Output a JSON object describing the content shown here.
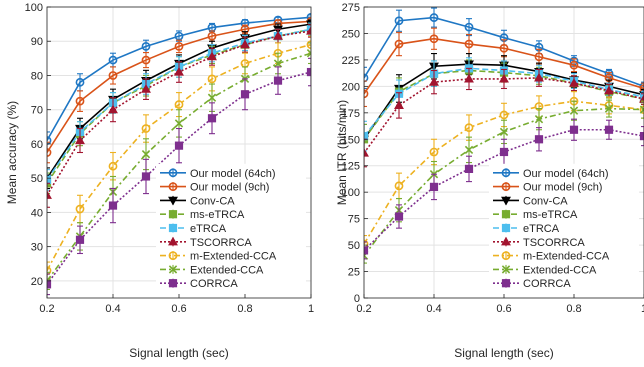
{
  "chart_data": [
    {
      "type": "line",
      "xlabel": "Signal length (sec)",
      "ylabel": "Mean accuracy (%)",
      "xlim": [
        0.2,
        1.0
      ],
      "ylim": [
        15,
        100
      ],
      "xticks": [
        0.2,
        0.4,
        0.6,
        0.8,
        1
      ],
      "xtick_labels": [
        "0.2",
        "0.4",
        "0.6",
        "0.8",
        "1"
      ],
      "yticks": [
        20,
        30,
        40,
        50,
        60,
        70,
        80,
        90,
        100
      ],
      "ytick_labels": [
        "20",
        "30",
        "40",
        "50",
        "60",
        "70",
        "80",
        "90",
        "100"
      ],
      "grid": true,
      "legend_position": "bottom-right",
      "x": [
        0.2,
        0.3,
        0.4,
        0.5,
        0.6,
        0.7,
        0.8,
        0.9,
        1.0
      ],
      "series": [
        {
          "name": "Our model (64ch)",
          "values": [
            61,
            78,
            84.5,
            88.5,
            91.5,
            94,
            95.3,
            96.2,
            97
          ],
          "err": [
            2.5,
            2.5,
            2,
            1.8,
            1.5,
            1.2,
            1,
            0.8,
            0.7
          ]
        },
        {
          "name": "Our model (9ch)",
          "values": [
            57.5,
            72.5,
            80,
            84.5,
            88.5,
            91.5,
            93.5,
            95.2,
            95.8
          ],
          "err": [
            3,
            3,
            2.5,
            2.2,
            1.8,
            1.5,
            1.2,
            1,
            0.9
          ]
        },
        {
          "name": "Conv-CA",
          "values": [
            50,
            64.5,
            73,
            78.5,
            83.5,
            88,
            91,
            93.5,
            95
          ],
          "err": [
            3,
            3,
            3,
            3,
            2.5,
            2,
            1.8,
            1.5,
            1.2
          ]
        },
        {
          "name": "ms-eTRCA",
          "values": [
            48.5,
            63,
            72,
            77,
            82.5,
            86,
            89,
            91.5,
            93.5
          ],
          "err": [
            3,
            3.5,
            3,
            3,
            3,
            2.5,
            2.2,
            2,
            1.8
          ]
        },
        {
          "name": "eTRCA",
          "values": [
            49.5,
            63.5,
            72,
            77.5,
            82.5,
            86.5,
            89.5,
            91.5,
            93.5
          ],
          "err": [
            3,
            3,
            3,
            3,
            3,
            2.5,
            2.2,
            2,
            1.8
          ]
        },
        {
          "name": "TSCORRCA",
          "values": [
            45,
            61,
            70,
            76,
            81,
            85.5,
            89,
            91.5,
            93
          ],
          "err": [
            3.5,
            3.5,
            3.5,
            3,
            3,
            2.5,
            2.2,
            2,
            1.8
          ]
        },
        {
          "name": "m-Extended-CCA",
          "values": [
            23,
            41,
            53.5,
            64.5,
            71.5,
            79,
            83.5,
            86.5,
            89
          ],
          "err": [
            2.5,
            4,
            4,
            4,
            3.5,
            3.5,
            3,
            3,
            2.5
          ]
        },
        {
          "name": "Extended-CCA",
          "values": [
            20,
            33,
            46,
            57,
            66,
            73.5,
            79,
            83.5,
            86.5
          ],
          "err": [
            2.5,
            4,
            4.5,
            4.5,
            4,
            4,
            3.5,
            3,
            3
          ]
        },
        {
          "name": "CORRCA",
          "values": [
            19,
            32,
            42,
            50.5,
            59.5,
            67.5,
            74.5,
            78.5,
            81
          ],
          "err": [
            3,
            4,
            5,
            5,
            5,
            4.5,
            4.5,
            4,
            4
          ]
        }
      ]
    },
    {
      "type": "line",
      "xlabel": "Signal length (sec)",
      "ylabel": "Mean ITR (bits/min)",
      "xlim": [
        0.2,
        1.0
      ],
      "ylim": [
        0,
        275
      ],
      "xticks": [
        0.2,
        0.4,
        0.6,
        0.8,
        1
      ],
      "xtick_labels": [
        "0.2",
        "0.4",
        "0.6",
        "0.8",
        "1"
      ],
      "yticks": [
        0,
        25,
        50,
        75,
        100,
        125,
        150,
        175,
        200,
        225,
        250,
        275
      ],
      "ytick_labels": [
        "0",
        "25",
        "50",
        "75",
        "100",
        "125",
        "150",
        "175",
        "200",
        "225",
        "250",
        "275"
      ],
      "grid": true,
      "legend_position": "bottom-right",
      "x": [
        0.2,
        0.3,
        0.4,
        0.5,
        0.6,
        0.7,
        0.8,
        0.9,
        1.0
      ],
      "series": [
        {
          "name": "Our model (64ch)",
          "values": [
            208,
            262,
            265,
            256,
            246,
            237,
            224,
            212,
            200
          ],
          "err": [
            10,
            10,
            9,
            8,
            7,
            6,
            5,
            4,
            4
          ]
        },
        {
          "name": "Our model (9ch)",
          "values": [
            193,
            240,
            245,
            240,
            236,
            228,
            220,
            208,
            198
          ],
          "err": [
            12,
            11,
            10,
            9,
            8,
            7,
            6,
            5,
            5
          ]
        },
        {
          "name": "Conv-CA",
          "values": [
            150,
            198,
            219,
            221,
            220,
            214,
            206,
            200,
            192
          ],
          "err": [
            14,
            13,
            12,
            10,
            9,
            8,
            7,
            6,
            5
          ]
        },
        {
          "name": "ms-eTRCA",
          "values": [
            150,
            195,
            212,
            215,
            213,
            210,
            203,
            195,
            188
          ],
          "err": [
            14,
            13,
            12,
            10,
            9,
            8,
            7,
            6,
            5
          ]
        },
        {
          "name": "eTRCA",
          "values": [
            153,
            193,
            212,
            217,
            215,
            212,
            205,
            197,
            190
          ],
          "err": [
            14,
            13,
            12,
            10,
            9,
            8,
            7,
            6,
            5
          ]
        },
        {
          "name": "TSCORRCA",
          "values": [
            137,
            182,
            204,
            207,
            207,
            208,
            203,
            196,
            188
          ],
          "err": [
            13,
            12,
            11,
            10,
            9,
            8,
            7,
            6,
            5
          ]
        },
        {
          "name": "m-Extended-CCA",
          "values": [
            51,
            106,
            138,
            161,
            173,
            181,
            186,
            182,
            178
          ],
          "err": [
            8,
            12,
            12,
            12,
            11,
            10,
            9,
            8,
            8
          ]
        },
        {
          "name": "Extended-CCA",
          "values": [
            40,
            83,
            117,
            140,
            157,
            169,
            177,
            179,
            178
          ],
          "err": [
            7,
            11,
            12,
            12,
            11,
            10,
            9,
            8,
            8
          ]
        },
        {
          "name": "CORRCA",
          "values": [
            45,
            77,
            105,
            122,
            138,
            150,
            159,
            159,
            153
          ],
          "err": [
            8,
            11,
            12,
            12,
            12,
            11,
            10,
            9,
            9
          ]
        }
      ]
    }
  ],
  "styles": [
    {
      "color": "#1f77c4",
      "dash": "",
      "marker": "circle"
    },
    {
      "color": "#d95319",
      "dash": "",
      "marker": "circle"
    },
    {
      "color": "#000000",
      "dash": "",
      "marker": "triangle-down"
    },
    {
      "color": "#77ac30",
      "dash": "6,3",
      "marker": "square"
    },
    {
      "color": "#4dbeee",
      "dash": "6,3",
      "marker": "square"
    },
    {
      "color": "#a2142f",
      "dash": "2,2",
      "marker": "triangle-up"
    },
    {
      "color": "#edb120",
      "dash": "6,3,2,3",
      "marker": "circle"
    },
    {
      "color": "#77ac30",
      "dash": "6,3,2,3",
      "marker": "x"
    },
    {
      "color": "#7e2f8e",
      "dash": "2,2",
      "marker": "square"
    }
  ]
}
